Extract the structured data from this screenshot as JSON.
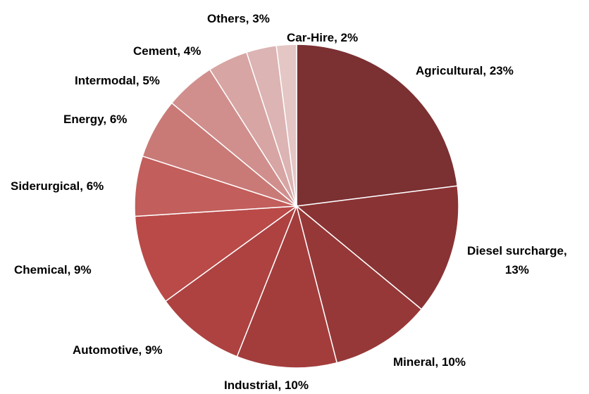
{
  "chart_data": {
    "type": "pie",
    "title": "",
    "start_angle_deg": 0,
    "direction": "clockwise",
    "slices": [
      {
        "label": "Agricultural",
        "value": 23,
        "display": [
          "Agricultural, 23%"
        ],
        "color": "#7b3032"
      },
      {
        "label": "Diesel surcharge",
        "value": 13,
        "display": [
          "Diesel surcharge,",
          "13%"
        ],
        "color": "#8a3334"
      },
      {
        "label": "Mineral",
        "value": 10,
        "display": [
          "Mineral, 10%"
        ],
        "color": "#973838"
      },
      {
        "label": "Industrial",
        "value": 10,
        "display": [
          "Industrial, 10%"
        ],
        "color": "#a33d3c"
      },
      {
        "label": "Automotive",
        "value": 9,
        "display": [
          "Automotive, 9%"
        ],
        "color": "#ad4241"
      },
      {
        "label": "Chemical",
        "value": 9,
        "display": [
          "Chemical, 9%"
        ],
        "color": "#b94a48"
      },
      {
        "label": "Siderurgical",
        "value": 6,
        "display": [
          "Siderurgical, 6%"
        ],
        "color": "#c25e5b"
      },
      {
        "label": "Energy",
        "value": 6,
        "display": [
          "Energy, 6%"
        ],
        "color": "#c97a77"
      },
      {
        "label": "Intermodal",
        "value": 5,
        "display": [
          "Intermodal, 5%"
        ],
        "color": "#d08f8d"
      },
      {
        "label": "Cement",
        "value": 4,
        "display": [
          "Cement, 4%"
        ],
        "color": "#d7a5a3"
      },
      {
        "label": "Others",
        "value": 3,
        "display": [
          "Others, 3%"
        ],
        "color": "#dcb4b3"
      },
      {
        "label": "Car-Hire",
        "value": 2,
        "display": [
          "Car-Hire, 2%"
        ],
        "color": "#e4c6c5"
      }
    ]
  }
}
